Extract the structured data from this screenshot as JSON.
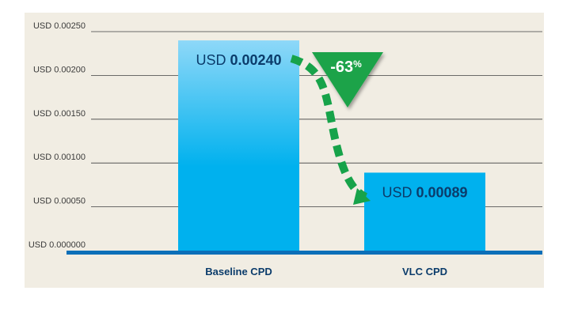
{
  "chart_data": {
    "type": "bar",
    "categories": [
      "Baseline CPD",
      "VLC CPD"
    ],
    "values": [
      0.0024,
      0.00089
    ],
    "value_labels": [
      {
        "prefix": "USD ",
        "value": "0.00240"
      },
      {
        "prefix": "USD ",
        "value": "0.00089"
      }
    ],
    "y_ticks": [
      "USD 0.000000",
      "USD 0.00050",
      "USD 0.00100",
      "USD 0.00150",
      "USD 0.00200",
      "USD 0.00250"
    ],
    "y_tick_values": [
      0,
      0.0005,
      0.001,
      0.0015,
      0.002,
      0.0025
    ],
    "ylim": [
      0,
      0.0025
    ],
    "grid": true,
    "annotation": {
      "number": "-63",
      "suffix": "%"
    },
    "colors": {
      "background": "#f1ede3",
      "bar_top": "#8ed8f8",
      "bar_bottom": "#00b1ee",
      "bar_vlc": "#00b1ee",
      "baseline_axis": "#0c6fb8",
      "gridline": "#3f3f3f",
      "tick_text": "#3a3a3a",
      "value_text": "#0b3c6b",
      "category_text": "#0b3c6b",
      "arrow": "#17a34a",
      "badge": "#1fa34a",
      "badge_text": "#ffffff"
    }
  }
}
